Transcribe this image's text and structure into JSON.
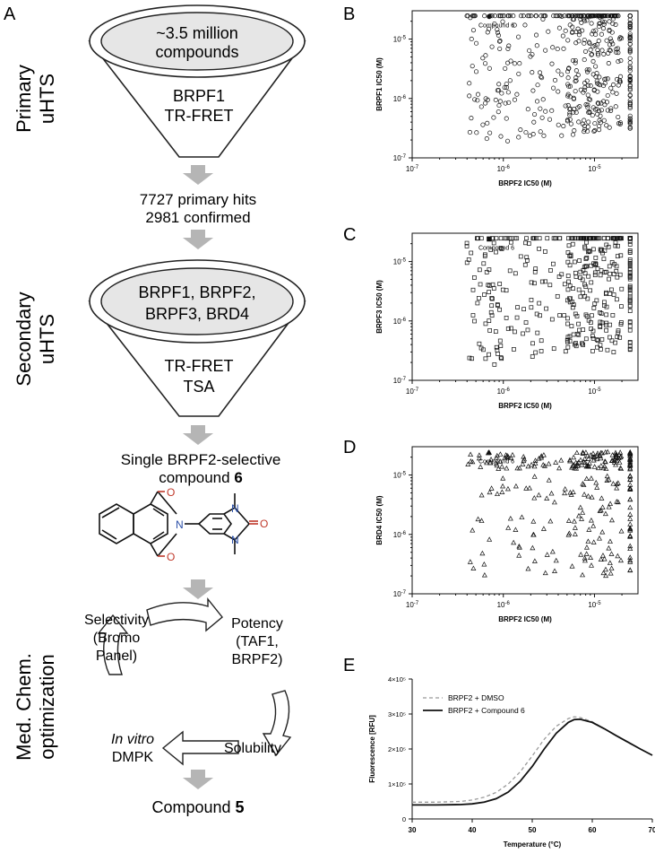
{
  "panels": {
    "A": "A",
    "B": "B",
    "C": "C",
    "D": "D",
    "E": "E"
  },
  "flow": {
    "stage1_label": [
      "Primary",
      "uHTS"
    ],
    "stage2_label": [
      "Secondary",
      "uHTS"
    ],
    "stage3_label": [
      "Med. Chem.",
      "optimization"
    ],
    "funnel1_top": [
      "~3.5 million",
      "compounds"
    ],
    "funnel1_assay": [
      "BRPF1",
      "TR-FRET"
    ],
    "hits": [
      "7727 primary hits",
      "2981 confirmed"
    ],
    "funnel2_top": [
      "BRPF1, BRPF2,",
      "BRPF3, BRD4"
    ],
    "funnel2_assay": [
      "TR-FRET",
      "TSA"
    ],
    "selective": [
      "Single BRPF2-selective",
      "compound"
    ],
    "selective_bold": "6",
    "cycle": {
      "selectivity": [
        "Selectivity",
        "(Bromo",
        "Panel)"
      ],
      "potency": [
        "Potency",
        "(TAF1,",
        "BRPF2)"
      ],
      "solubility": "Solubility",
      "dmpk_italic": "In vitro",
      "dmpk": "DMPK"
    },
    "final": "Compound",
    "final_bold": "5"
  },
  "chart_data": [
    {
      "panel": "B",
      "type": "scatter",
      "marker": "circle",
      "xlabel": "BRPF2 IC50 (M)",
      "ylabel": "BRPF1 IC50 (M)",
      "xscale": "log",
      "yscale": "log",
      "xlim": [
        1e-07,
        3e-05
      ],
      "ylim": [
        1e-07,
        3e-05
      ],
      "xticks": [
        "10-7",
        "10-6",
        "10-5"
      ],
      "yticks": [
        "10-7",
        "10-6",
        "10-5"
      ],
      "annotation": "Compound 6",
      "highlight": {
        "x": 7e-07,
        "y": 2.4e-05
      },
      "points_count": 520,
      "seed": 11
    },
    {
      "panel": "C",
      "type": "scatter",
      "marker": "square",
      "xlabel": "BRPF2 IC50 (M)",
      "ylabel": "BRPF3 IC50 (M)",
      "xscale": "log",
      "yscale": "log",
      "xlim": [
        1e-07,
        3e-05
      ],
      "ylim": [
        1e-07,
        3e-05
      ],
      "xticks": [
        "10-7",
        "10-6",
        "10-5"
      ],
      "yticks": [
        "10-7",
        "10-6",
        "10-5"
      ],
      "annotation": "Compound 6",
      "highlight": {
        "x": 7e-07,
        "y": 2.4e-05
      },
      "points_count": 420,
      "seed": 23
    },
    {
      "panel": "D",
      "type": "scatter",
      "marker": "triangle",
      "xlabel": "BRPF2 IC50 (M)",
      "ylabel": "BRD4 IC50 (M)",
      "xscale": "log",
      "yscale": "log",
      "xlim": [
        1e-07,
        3e-05
      ],
      "ylim": [
        1e-07,
        3e-05
      ],
      "xticks": [
        "10-7",
        "10-6",
        "10-5"
      ],
      "yticks": [
        "10-7",
        "10-6",
        "10-5"
      ],
      "annotation": "Compound 6",
      "highlight": {
        "x": 7e-07,
        "y": 2.4e-05
      },
      "points_count": 300,
      "seed": 37
    },
    {
      "panel": "E",
      "type": "line",
      "xlabel": "Temperature (°C)",
      "ylabel": "Fluorescence [RFU]",
      "xlim": [
        30,
        70
      ],
      "ylim": [
        0,
        400000
      ],
      "xticks": [
        30,
        40,
        50,
        60,
        70
      ],
      "yticks": [
        0,
        100000,
        200000,
        300000,
        400000
      ],
      "yticklabels": [
        "0",
        "1×10⁵",
        "2×10⁵",
        "3×10⁵",
        "4×10⁵"
      ],
      "series": [
        {
          "name": "BRPF2 + DMSO",
          "style": "dashed",
          "color": "#9a9a9a",
          "x": [
            30,
            34,
            38,
            40,
            42,
            44,
            46,
            48,
            50,
            52,
            54,
            56,
            57,
            58,
            60,
            62,
            64,
            66,
            68,
            70
          ],
          "y": [
            48000,
            48000,
            50000,
            54000,
            62000,
            76000,
            100000,
            135000,
            180000,
            228000,
            265000,
            287000,
            292000,
            290000,
            278000,
            258000,
            238000,
            218000,
            200000,
            182000
          ]
        },
        {
          "name": "BRPF2 + Compound 6",
          "style": "solid",
          "color": "#111111",
          "x": [
            30,
            34,
            38,
            40,
            42,
            44,
            46,
            48,
            50,
            52,
            54,
            56,
            57,
            58,
            60,
            62,
            64,
            66,
            68,
            70
          ],
          "y": [
            40000,
            40000,
            41000,
            43000,
            48000,
            58000,
            77000,
            108000,
            150000,
            200000,
            245000,
            276000,
            284000,
            285000,
            276000,
            258000,
            238000,
            219000,
            200000,
            182000
          ]
        }
      ]
    }
  ]
}
